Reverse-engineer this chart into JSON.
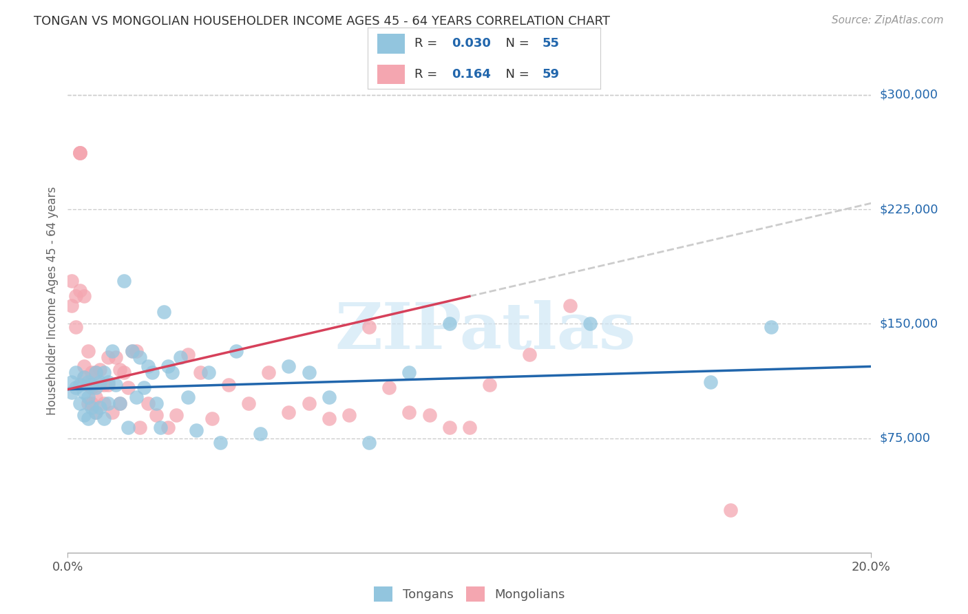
{
  "title": "TONGAN VS MONGOLIAN HOUSEHOLDER INCOME AGES 45 - 64 YEARS CORRELATION CHART",
  "source": "Source: ZipAtlas.com",
  "ylabel": "Householder Income Ages 45 - 64 years",
  "xlim": [
    0.0,
    0.2
  ],
  "ylim": [
    0,
    330000
  ],
  "yticks": [
    75000,
    150000,
    225000,
    300000
  ],
  "ytick_labels": [
    "$75,000",
    "$150,000",
    "$225,000",
    "$300,000"
  ],
  "xtick_left": "0.0%",
  "xtick_right": "20.0%",
  "tongan_color": "#92c5de",
  "tongan_line_color": "#2166ac",
  "mongolian_color": "#f4a6b0",
  "mongolian_line_color": "#d6405a",
  "mongolian_dash_color": "#cccccc",
  "background_color": "#ffffff",
  "grid_color": "#cccccc",
  "watermark": "ZIPatlas",
  "tongan_R": "0.030",
  "tongan_N": "55",
  "mongolian_R": "0.164",
  "mongolian_N": "59",
  "tongans_x": [
    0.001,
    0.001,
    0.002,
    0.002,
    0.003,
    0.003,
    0.004,
    0.004,
    0.004,
    0.005,
    0.005,
    0.005,
    0.006,
    0.006,
    0.007,
    0.007,
    0.007,
    0.008,
    0.008,
    0.009,
    0.009,
    0.01,
    0.01,
    0.011,
    0.012,
    0.013,
    0.014,
    0.015,
    0.016,
    0.017,
    0.018,
    0.019,
    0.02,
    0.021,
    0.022,
    0.023,
    0.024,
    0.025,
    0.026,
    0.028,
    0.03,
    0.032,
    0.035,
    0.038,
    0.042,
    0.048,
    0.055,
    0.06,
    0.065,
    0.075,
    0.085,
    0.095,
    0.13,
    0.16,
    0.175
  ],
  "tongans_y": [
    105000,
    112000,
    108000,
    118000,
    110000,
    98000,
    115000,
    105000,
    90000,
    112000,
    102000,
    88000,
    110000,
    95000,
    118000,
    108000,
    92000,
    112000,
    95000,
    118000,
    88000,
    112000,
    98000,
    132000,
    110000,
    98000,
    178000,
    82000,
    132000,
    102000,
    128000,
    108000,
    122000,
    118000,
    98000,
    82000,
    158000,
    122000,
    118000,
    128000,
    102000,
    80000,
    118000,
    72000,
    132000,
    78000,
    122000,
    118000,
    102000,
    72000,
    118000,
    150000,
    150000,
    112000,
    148000
  ],
  "mongolians_x": [
    0.001,
    0.001,
    0.002,
    0.002,
    0.003,
    0.003,
    0.003,
    0.003,
    0.004,
    0.004,
    0.004,
    0.005,
    0.005,
    0.005,
    0.006,
    0.006,
    0.006,
    0.007,
    0.007,
    0.007,
    0.008,
    0.008,
    0.009,
    0.009,
    0.01,
    0.01,
    0.011,
    0.012,
    0.013,
    0.013,
    0.014,
    0.015,
    0.016,
    0.017,
    0.018,
    0.02,
    0.022,
    0.025,
    0.027,
    0.03,
    0.033,
    0.036,
    0.04,
    0.045,
    0.05,
    0.055,
    0.06,
    0.065,
    0.07,
    0.075,
    0.08,
    0.085,
    0.09,
    0.095,
    0.1,
    0.105,
    0.115,
    0.125,
    0.165
  ],
  "mongolians_y": [
    178000,
    162000,
    168000,
    148000,
    172000,
    262000,
    262000,
    262000,
    168000,
    122000,
    115000,
    132000,
    110000,
    98000,
    118000,
    108000,
    98000,
    118000,
    102000,
    92000,
    110000,
    120000,
    110000,
    98000,
    128000,
    110000,
    92000,
    128000,
    120000,
    98000,
    118000,
    108000,
    132000,
    132000,
    82000,
    98000,
    90000,
    82000,
    90000,
    130000,
    118000,
    88000,
    110000,
    98000,
    118000,
    92000,
    98000,
    88000,
    90000,
    148000,
    108000,
    92000,
    90000,
    82000,
    82000,
    110000,
    130000,
    162000,
    28000
  ]
}
